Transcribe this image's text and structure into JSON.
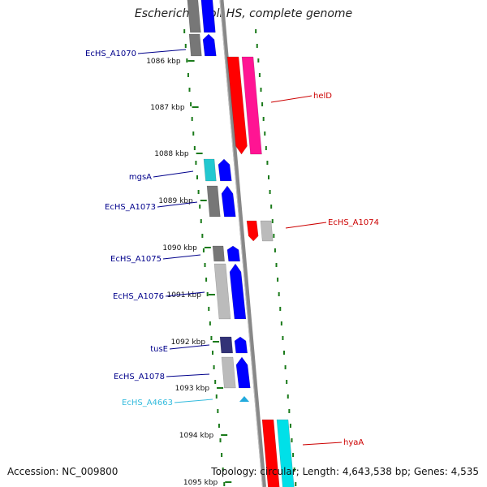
{
  "title": "Escherichia coli HS, complete genome",
  "footer": {
    "accession_label": "Accession:",
    "accession": "NC_009800",
    "topology_label": "Topology:",
    "topology": "circular",
    "length_label": "Length:",
    "length": "4,643,538 bp",
    "genes_label": "Genes:",
    "genes": "4,535"
  },
  "ruler_labels": [
    "1086 kbp",
    "1087 kbp",
    "1088 kbp",
    "1089 kbp",
    "1090 kbp",
    "1091 kbp",
    "1092 kbp",
    "1093 kbp",
    "1094 kbp",
    "1095 kbp"
  ],
  "gene_labels": [
    {
      "name": "EcHS_A1070",
      "strand": "reverse",
      "color": "#00008b"
    },
    {
      "name": "helD",
      "strand": "forward",
      "color": "#cc0000"
    },
    {
      "name": "mgsA",
      "strand": "reverse",
      "color": "#00008b"
    },
    {
      "name": "EcHS_A1073",
      "strand": "reverse",
      "color": "#00008b"
    },
    {
      "name": "EcHS_A1074",
      "strand": "forward",
      "color": "#cc0000"
    },
    {
      "name": "EcHS_A1075",
      "strand": "reverse",
      "color": "#00008b"
    },
    {
      "name": "EcHS_A1076",
      "strand": "reverse",
      "color": "#00008b"
    },
    {
      "name": "tusE",
      "strand": "reverse",
      "color": "#00008b"
    },
    {
      "name": "EcHS_A1078",
      "strand": "reverse",
      "color": "#00008b"
    },
    {
      "name": "EcHS_A4663",
      "strand": "reverse",
      "color": "#33bbdd"
    },
    {
      "name": "hyaA",
      "strand": "forward",
      "color": "#cc0000"
    }
  ],
  "colors": {
    "backbone": "#888888",
    "ticks": "#1a7a1a",
    "forward_cds": "#ff0000",
    "forward_cog": "#ff1493",
    "reverse_cds": "#0000ff",
    "reverse_cog_gray": "#777777",
    "reverse_cog_cyan": "#22c8d0",
    "rna": "#22aadd"
  }
}
